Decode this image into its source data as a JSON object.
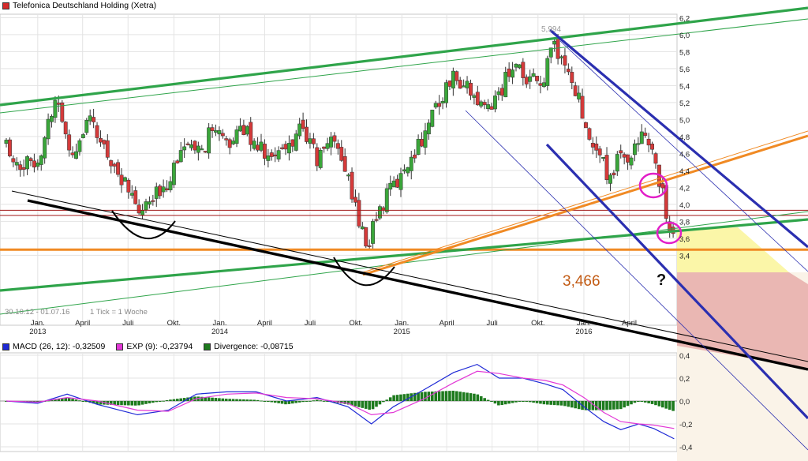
{
  "header": {
    "title": "Telefonica Deutschland Holding (Xetra)",
    "title_color": "#d62b2b",
    "period_text": "30.10.12 - 01.07.16",
    "tick_text": "1 Tick = 1 Woche"
  },
  "annotations": {
    "support_label": "3,466",
    "question_mark": "?",
    "high_label": "5,994"
  },
  "macd_legend": {
    "macd": {
      "label": "MACD (26, 12): -0,32509",
      "color": "#1f2ad6"
    },
    "exp": {
      "label": "EXP (9): -0,23794",
      "color": "#e238d6"
    },
    "divergence": {
      "label": "Divergence: -0,08715",
      "color": "#1d7a1d"
    }
  },
  "chart_data": [
    {
      "type": "candlestick",
      "title": "Telefonica Deutschland Holding (Xetra)",
      "y_ticks": [
        3.4,
        3.6,
        3.8,
        4.0,
        4.2,
        4.4,
        4.6,
        4.8,
        5.0,
        5.2,
        5.4,
        5.6,
        5.8,
        6.0,
        6.2
      ],
      "y_tick_labels": [
        "3,4",
        "3,6",
        "3,8",
        "4,0",
        "4,2",
        "4,4",
        "4,6",
        "4,8",
        "5,0",
        "5,2",
        "5,4",
        "5,6",
        "5,8",
        "6,0",
        "6,2"
      ],
      "x_ticks": [
        {
          "label": "Jan.",
          "year": "2013",
          "date": "2013-01-01"
        },
        {
          "label": "April",
          "date": "2013-04-01"
        },
        {
          "label": "Juli",
          "date": "2013-07-01"
        },
        {
          "label": "Okt.",
          "date": "2013-10-01"
        },
        {
          "label": "Jan.",
          "year": "2014",
          "date": "2014-01-01"
        },
        {
          "label": "April",
          "date": "2014-04-01"
        },
        {
          "label": "Juli",
          "date": "2014-07-01"
        },
        {
          "label": "Okt.",
          "date": "2014-10-01"
        },
        {
          "label": "Jan.",
          "year": "2015",
          "date": "2015-01-01"
        },
        {
          "label": "April",
          "date": "2015-04-01"
        },
        {
          "label": "Juli",
          "date": "2015-07-01"
        },
        {
          "label": "Okt.",
          "date": "2015-10-01"
        },
        {
          "label": "Jan.",
          "year": "2016",
          "date": "2016-01-01"
        },
        {
          "label": "April",
          "date": "2016-04-01"
        }
      ],
      "x_range": [
        "2012-10-30",
        "2016-07-01"
      ],
      "close_path": [
        [
          "2012-10-30",
          4.7
        ],
        [
          "2012-12-01",
          4.45
        ],
        [
          "2013-01-01",
          4.55
        ],
        [
          "2013-02-10",
          5.3
        ],
        [
          "2013-03-05",
          4.6
        ],
        [
          "2013-04-15",
          4.95
        ],
        [
          "2013-05-20",
          4.6
        ],
        [
          "2013-06-20",
          4.3
        ],
        [
          "2013-07-15",
          3.95
        ],
        [
          "2013-08-01",
          3.9
        ],
        [
          "2013-08-20",
          4.05
        ],
        [
          "2013-09-20",
          4.3
        ],
        [
          "2013-10-15",
          4.7
        ],
        [
          "2013-11-15",
          4.55
        ],
        [
          "2013-12-15",
          4.85
        ],
        [
          "2014-01-15",
          4.7
        ],
        [
          "2014-02-15",
          4.9
        ],
        [
          "2014-03-15",
          4.75
        ],
        [
          "2014-04-15",
          4.5
        ],
        [
          "2014-05-15",
          4.65
        ],
        [
          "2014-06-15",
          4.95
        ],
        [
          "2014-07-15",
          4.5
        ],
        [
          "2014-08-15",
          4.85
        ],
        [
          "2014-09-10",
          4.4
        ],
        [
          "2014-09-25",
          4.1
        ],
        [
          "2014-10-12",
          3.65
        ],
        [
          "2014-10-25",
          3.55
        ],
        [
          "2014-11-15",
          3.95
        ],
        [
          "2014-12-15",
          4.2
        ],
        [
          "2015-01-15",
          4.5
        ],
        [
          "2015-02-15",
          4.85
        ],
        [
          "2015-03-15",
          5.2
        ],
        [
          "2015-04-15",
          5.55
        ],
        [
          "2015-05-15",
          5.35
        ],
        [
          "2015-06-15",
          5.1
        ],
        [
          "2015-07-15",
          5.3
        ],
        [
          "2015-08-15",
          5.7
        ],
        [
          "2015-09-10",
          5.4
        ],
        [
          "2015-10-15",
          5.5
        ],
        [
          "2015-11-01",
          5.9
        ],
        [
          "2015-11-20",
          5.7
        ],
        [
          "2015-12-15",
          5.35
        ],
        [
          "2016-01-15",
          4.8
        ],
        [
          "2016-02-05",
          4.5
        ],
        [
          "2016-02-20",
          4.35
        ],
        [
          "2016-03-15",
          4.55
        ],
        [
          "2016-04-10",
          4.6
        ],
        [
          "2016-04-25",
          4.75
        ],
        [
          "2016-05-15",
          4.7
        ],
        [
          "2016-05-28",
          4.4
        ],
        [
          "2016-06-10",
          4.0
        ],
        [
          "2016-06-20",
          3.75
        ],
        [
          "2016-06-30",
          3.55
        ]
      ],
      "levels": [
        {
          "name": "3,466",
          "value": 3.466,
          "color": "#f08a24"
        },
        {
          "value": 3.87,
          "color": "#a01818"
        },
        {
          "value": 3.93,
          "color": "#a01818"
        }
      ]
    },
    {
      "type": "line",
      "y_ticks": [
        -0.4,
        -0.2,
        0.0,
        0.2,
        0.4
      ],
      "y_tick_labels": [
        "-0,4",
        "-0,2",
        "0,0",
        "0,2",
        "0,4"
      ],
      "series": [
        {
          "name": "MACD (26, 12)",
          "color": "#1f2ad6",
          "values": [
            [
              "2012-10-30",
              0.0
            ],
            [
              "2013-01-01",
              -0.02
            ],
            [
              "2013-03-01",
              0.06
            ],
            [
              "2013-05-01",
              -0.03
            ],
            [
              "2013-07-20",
              -0.12
            ],
            [
              "2013-09-20",
              -0.08
            ],
            [
              "2013-11-15",
              0.06
            ],
            [
              "2014-01-15",
              0.08
            ],
            [
              "2014-03-15",
              0.08
            ],
            [
              "2014-05-15",
              0.0
            ],
            [
              "2014-07-15",
              0.03
            ],
            [
              "2014-09-15",
              -0.05
            ],
            [
              "2014-11-01",
              -0.2
            ],
            [
              "2014-12-15",
              -0.05
            ],
            [
              "2015-02-15",
              0.1
            ],
            [
              "2015-04-15",
              0.25
            ],
            [
              "2015-06-01",
              0.32
            ],
            [
              "2015-07-15",
              0.2
            ],
            [
              "2015-09-01",
              0.2
            ],
            [
              "2015-10-15",
              0.15
            ],
            [
              "2015-11-20",
              0.1
            ],
            [
              "2016-01-01",
              -0.05
            ],
            [
              "2016-02-10",
              -0.18
            ],
            [
              "2016-03-15",
              -0.25
            ],
            [
              "2016-04-20",
              -0.2
            ],
            [
              "2016-05-20",
              -0.24
            ],
            [
              "2016-06-30",
              -0.33
            ]
          ]
        },
        {
          "name": "EXP (9)",
          "color": "#e238d6",
          "values": [
            [
              "2012-10-30",
              0.0
            ],
            [
              "2013-01-01",
              -0.01
            ],
            [
              "2013-03-01",
              0.03
            ],
            [
              "2013-05-01",
              0.0
            ],
            [
              "2013-07-20",
              -0.08
            ],
            [
              "2013-09-20",
              -0.09
            ],
            [
              "2013-11-15",
              0.02
            ],
            [
              "2014-01-15",
              0.06
            ],
            [
              "2014-03-15",
              0.07
            ],
            [
              "2014-05-15",
              0.03
            ],
            [
              "2014-07-15",
              0.02
            ],
            [
              "2014-09-15",
              -0.02
            ],
            [
              "2014-11-01",
              -0.12
            ],
            [
              "2014-12-15",
              -0.1
            ],
            [
              "2015-02-15",
              0.02
            ],
            [
              "2015-04-15",
              0.16
            ],
            [
              "2015-06-01",
              0.26
            ],
            [
              "2015-07-15",
              0.24
            ],
            [
              "2015-09-01",
              0.2
            ],
            [
              "2015-10-15",
              0.18
            ],
            [
              "2015-11-20",
              0.14
            ],
            [
              "2016-01-01",
              0.03
            ],
            [
              "2016-02-10",
              -0.1
            ],
            [
              "2016-03-15",
              -0.18
            ],
            [
              "2016-04-20",
              -0.2
            ],
            [
              "2016-05-20",
              -0.21
            ],
            [
              "2016-06-30",
              -0.24
            ]
          ]
        }
      ]
    }
  ]
}
